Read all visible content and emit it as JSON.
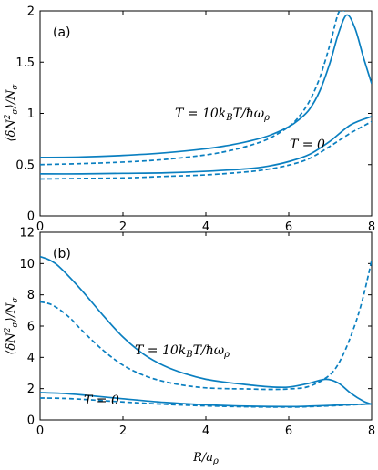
{
  "chart_data": [
    {
      "type": "line",
      "panel_label": "(a)",
      "ylabel": "⟨δN²σ⟩/Nσ",
      "xlim": [
        0,
        8
      ],
      "ylim": [
        0,
        2
      ],
      "xticks": [
        "0",
        "2",
        "4",
        "6",
        "8"
      ],
      "yticks": [
        "0",
        "0.5",
        "1",
        "1.5",
        "2"
      ],
      "series": [
        {
          "name": "T = 10kBT/ħωρ",
          "style": "solid",
          "x": [
            0,
            1,
            2,
            3,
            4,
            4.5,
            5,
            5.5,
            6,
            6.25,
            6.5,
            6.75,
            7,
            7.2,
            7.4,
            7.6,
            7.8,
            8
          ],
          "y": [
            0.57,
            0.575,
            0.59,
            0.615,
            0.655,
            0.685,
            0.725,
            0.78,
            0.87,
            0.94,
            1.04,
            1.22,
            1.5,
            1.78,
            1.96,
            1.83,
            1.55,
            1.29
          ]
        },
        {
          "name": "T = 10kBT/ħωρ",
          "style": "dashed",
          "x": [
            0,
            1,
            2,
            3,
            4,
            4.5,
            5,
            5.5,
            6,
            6.25,
            6.5,
            6.75,
            7,
            7.2,
            7.35
          ],
          "y": [
            0.5,
            0.51,
            0.525,
            0.55,
            0.595,
            0.63,
            0.68,
            0.75,
            0.87,
            0.97,
            1.12,
            1.35,
            1.68,
            1.98,
            2.0
          ]
        },
        {
          "name": "T = 0",
          "style": "solid",
          "x": [
            0,
            1,
            2,
            3,
            4,
            5,
            5.5,
            6,
            6.5,
            7,
            7.5,
            8
          ],
          "y": [
            0.41,
            0.41,
            0.415,
            0.42,
            0.435,
            0.46,
            0.485,
            0.53,
            0.6,
            0.73,
            0.89,
            0.97
          ]
        },
        {
          "name": "T = 0",
          "style": "dashed",
          "x": [
            0,
            1,
            2,
            3,
            4,
            5,
            5.5,
            6,
            6.5,
            7,
            7.5,
            8
          ],
          "y": [
            0.36,
            0.365,
            0.37,
            0.385,
            0.4,
            0.43,
            0.455,
            0.495,
            0.56,
            0.68,
            0.81,
            0.92
          ]
        }
      ],
      "annotations": [
        "T = 10kBT/ħωρ",
        "T = 0"
      ]
    },
    {
      "type": "line",
      "panel_label": "(b)",
      "ylabel": "⟨δN²σ⟩/Nσ",
      "xlabel": "R/aρ",
      "xlim": [
        0,
        8
      ],
      "ylim": [
        0,
        12
      ],
      "xticks": [
        "0",
        "2",
        "4",
        "6",
        "8"
      ],
      "yticks": [
        "0",
        "2",
        "4",
        "6",
        "8",
        "10",
        "12"
      ],
      "series": [
        {
          "name": "T = 10kBT/ħωρ",
          "style": "solid",
          "x": [
            0,
            0.25,
            0.5,
            1,
            1.5,
            2,
            2.5,
            3,
            3.5,
            4,
            4.5,
            5,
            5.5,
            6,
            6.5,
            6.9,
            7.2,
            7.5,
            7.8,
            8
          ],
          "y": [
            10.45,
            10.2,
            9.7,
            8.3,
            6.75,
            5.3,
            4.2,
            3.45,
            2.95,
            2.6,
            2.4,
            2.25,
            2.12,
            2.1,
            2.35,
            2.6,
            2.35,
            1.7,
            1.2,
            1.0
          ]
        },
        {
          "name": "T = 10kBT/ħωρ",
          "style": "dashed",
          "x": [
            0,
            0.25,
            0.5,
            0.75,
            1,
            1.5,
            2,
            2.5,
            3,
            3.5,
            4,
            4.5,
            5,
            5.5,
            6,
            6.5,
            7,
            7.3,
            7.6,
            7.8,
            8
          ],
          "y": [
            7.55,
            7.4,
            7.0,
            6.45,
            5.75,
            4.5,
            3.5,
            2.85,
            2.45,
            2.2,
            2.05,
            2.0,
            1.98,
            1.95,
            1.98,
            2.15,
            2.9,
            4.1,
            6.1,
            7.9,
            10.2
          ]
        },
        {
          "name": "T = 0",
          "style": "solid",
          "x": [
            0,
            0.5,
            1,
            2,
            3,
            4,
            5,
            6,
            6.5,
            7,
            7.5,
            8
          ],
          "y": [
            1.75,
            1.7,
            1.6,
            1.35,
            1.12,
            0.97,
            0.88,
            0.85,
            0.88,
            0.93,
            0.98,
            1.02
          ]
        },
        {
          "name": "T = 0",
          "style": "dashed",
          "x": [
            0,
            0.5,
            1,
            2,
            3,
            4,
            5,
            6,
            6.5,
            7,
            7.5,
            8
          ],
          "y": [
            1.4,
            1.38,
            1.32,
            1.15,
            1.0,
            0.9,
            0.84,
            0.82,
            0.85,
            0.9,
            0.96,
            1.02
          ]
        }
      ],
      "annotations": [
        "T = 10kBT/ħωρ",
        "T = 0"
      ]
    }
  ]
}
